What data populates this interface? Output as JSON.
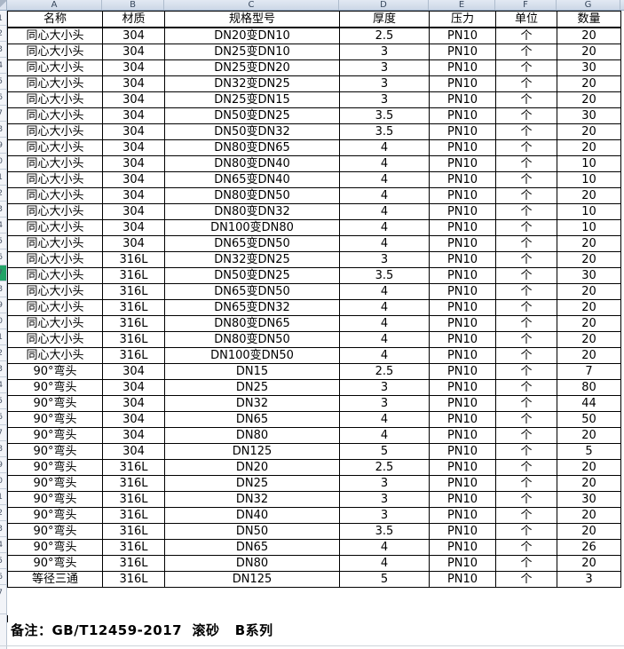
{
  "colors": {
    "selection_green": "#21a366",
    "grid_line": "#000000",
    "header_strip_bg": "#d8e1ed",
    "strip_divider": "#c3ccd8"
  },
  "column_letters": [
    "A",
    "B",
    "C",
    "D",
    "E",
    "F",
    "G"
  ],
  "table": {
    "headers": [
      "名称",
      "材质",
      "规格型号",
      "厚度",
      "压力",
      "单位",
      "数量"
    ],
    "selected_row_number": 16,
    "rows": [
      [
        "同心大小头",
        "304",
        "DN20变DN10",
        "2.5",
        "PN10",
        "个",
        "20"
      ],
      [
        "同心大小头",
        "304",
        "DN25变DN10",
        "3",
        "PN10",
        "个",
        "20"
      ],
      [
        "同心大小头",
        "304",
        "DN25变DN20",
        "3",
        "PN10",
        "个",
        "30"
      ],
      [
        "同心大小头",
        "304",
        "DN32变DN25",
        "3",
        "PN10",
        "个",
        "20"
      ],
      [
        "同心大小头",
        "304",
        "DN25变DN15",
        "3",
        "PN10",
        "个",
        "20"
      ],
      [
        "同心大小头",
        "304",
        "DN50变DN25",
        "3.5",
        "PN10",
        "个",
        "30"
      ],
      [
        "同心大小头",
        "304",
        "DN50变DN32",
        "3.5",
        "PN10",
        "个",
        "20"
      ],
      [
        "同心大小头",
        "304",
        "DN80变DN65",
        "4",
        "PN10",
        "个",
        "20"
      ],
      [
        "同心大小头",
        "304",
        "DN80变DN40",
        "4",
        "PN10",
        "个",
        "10"
      ],
      [
        "同心大小头",
        "304",
        "DN65变DN40",
        "4",
        "PN10",
        "个",
        "10"
      ],
      [
        "同心大小头",
        "304",
        "DN80变DN50",
        "4",
        "PN10",
        "个",
        "20"
      ],
      [
        "同心大小头",
        "304",
        "DN80变DN32",
        "4",
        "PN10",
        "个",
        "10"
      ],
      [
        "同心大小头",
        "304",
        "DN100变DN80",
        "4",
        "PN10",
        "个",
        "10"
      ],
      [
        "同心大小头",
        "304",
        "DN65变DN50",
        "4",
        "PN10",
        "个",
        "20"
      ],
      [
        "同心大小头",
        "316L",
        "DN32变DN25",
        "3",
        "PN10",
        "个",
        "20"
      ],
      [
        "同心大小头",
        "316L",
        "DN50变DN25",
        "3.5",
        "PN10",
        "个",
        "30"
      ],
      [
        "同心大小头",
        "316L",
        "DN65变DN50",
        "4",
        "PN10",
        "个",
        "20"
      ],
      [
        "同心大小头",
        "316L",
        "DN65变DN32",
        "4",
        "PN10",
        "个",
        "20"
      ],
      [
        "同心大小头",
        "316L",
        "DN80变DN65",
        "4",
        "PN10",
        "个",
        "20"
      ],
      [
        "同心大小头",
        "316L",
        "DN80变DN50",
        "4",
        "PN10",
        "个",
        "20"
      ],
      [
        "同心大小头",
        "316L",
        "DN100变DN50",
        "4",
        "PN10",
        "个",
        "20"
      ],
      [
        "90°弯头",
        "304",
        "DN15",
        "2.5",
        "PN10",
        "个",
        "7"
      ],
      [
        "90°弯头",
        "304",
        "DN25",
        "3",
        "PN10",
        "个",
        "80"
      ],
      [
        "90°弯头",
        "304",
        "DN32",
        "3",
        "PN10",
        "个",
        "44"
      ],
      [
        "90°弯头",
        "304",
        "DN65",
        "4",
        "PN10",
        "个",
        "50"
      ],
      [
        "90°弯头",
        "304",
        "DN80",
        "4",
        "PN10",
        "个",
        "20"
      ],
      [
        "90°弯头",
        "304",
        "DN125",
        "5",
        "PN10",
        "个",
        "5"
      ],
      [
        "90°弯头",
        "316L",
        "DN20",
        "2.5",
        "PN10",
        "个",
        "20"
      ],
      [
        "90°弯头",
        "316L",
        "DN25",
        "3",
        "PN10",
        "个",
        "20"
      ],
      [
        "90°弯头",
        "316L",
        "DN32",
        "3",
        "PN10",
        "个",
        "30"
      ],
      [
        "90°弯头",
        "316L",
        "DN40",
        "3",
        "PN10",
        "个",
        "20"
      ],
      [
        "90°弯头",
        "316L",
        "DN50",
        "3.5",
        "PN10",
        "个",
        "20"
      ],
      [
        "90°弯头",
        "316L",
        "DN65",
        "4",
        "PN10",
        "个",
        "26"
      ],
      [
        "90°弯头",
        "316L",
        "DN80",
        "4",
        "PN10",
        "个",
        "20"
      ],
      [
        "等径三通",
        "316L",
        "DN125",
        "5",
        "PN10",
        "个",
        "3"
      ]
    ]
  },
  "note": {
    "text": "备注：GB/T12459-2017  滚砂   B系列"
  }
}
